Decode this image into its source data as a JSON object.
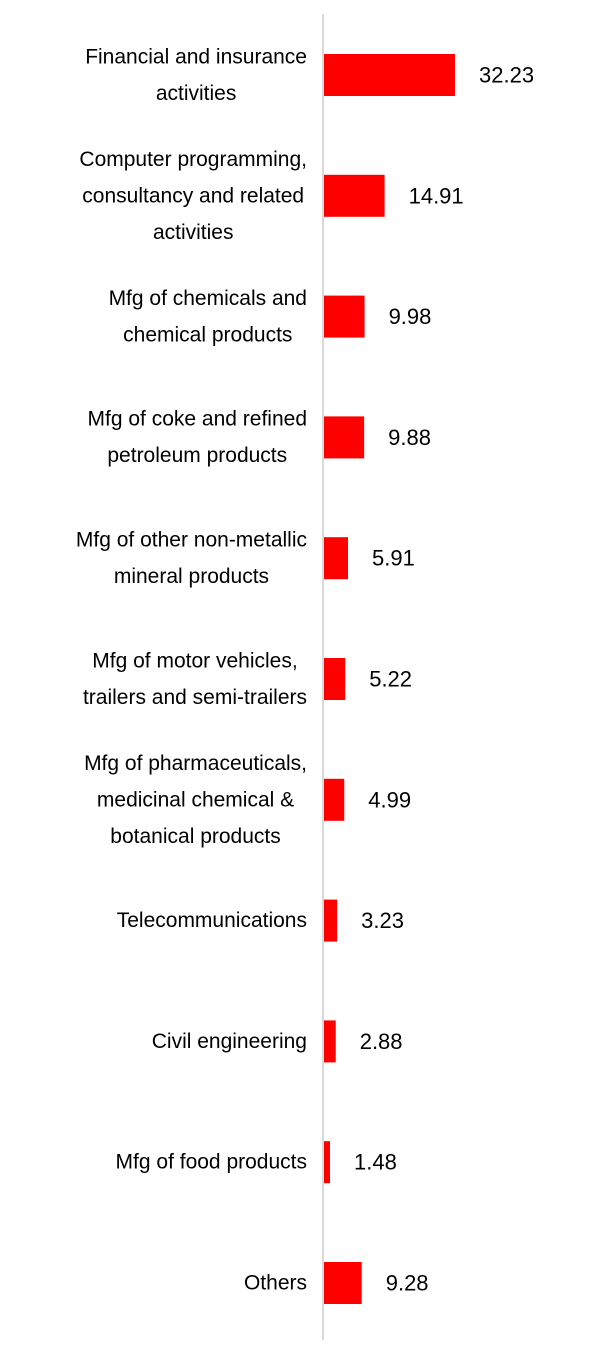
{
  "chart_data": {
    "type": "bar",
    "orientation": "horizontal",
    "title": "",
    "xlabel": "",
    "ylabel": "",
    "categories": [
      [
        "Financial and insurance",
        "activities"
      ],
      [
        "Computer programming,",
        "consultancy and related",
        "activities"
      ],
      [
        "Mfg of chemicals and",
        "chemical products"
      ],
      [
        "Mfg of coke and refined",
        "petroleum products"
      ],
      [
        "Mfg of other non-metallic",
        "mineral products"
      ],
      [
        "Mfg of motor vehicles,",
        "trailers and semi-trailers"
      ],
      [
        "Mfg of pharmaceuticals,",
        "medicinal chemical &",
        "botanical products"
      ],
      [
        "Telecommunications"
      ],
      [
        "Civil engineering"
      ],
      [
        "Mfg of food products"
      ],
      [
        "Others"
      ]
    ],
    "values": [
      32.23,
      14.91,
      9.98,
      9.88,
      5.91,
      5.22,
      4.99,
      3.23,
      2.88,
      1.48,
      9.28
    ],
    "value_labels": [
      "32.23",
      "14.91",
      "9.98",
      "9.88",
      "5.91",
      "5.22",
      "4.99",
      "3.23",
      "2.88",
      "1.48",
      "9.28"
    ],
    "xlim": [
      0,
      32.23
    ],
    "grid": false,
    "legend": "none",
    "colors": {
      "bar": "#ff0000",
      "axis": "#d9d9d9",
      "text": "#000000"
    }
  }
}
